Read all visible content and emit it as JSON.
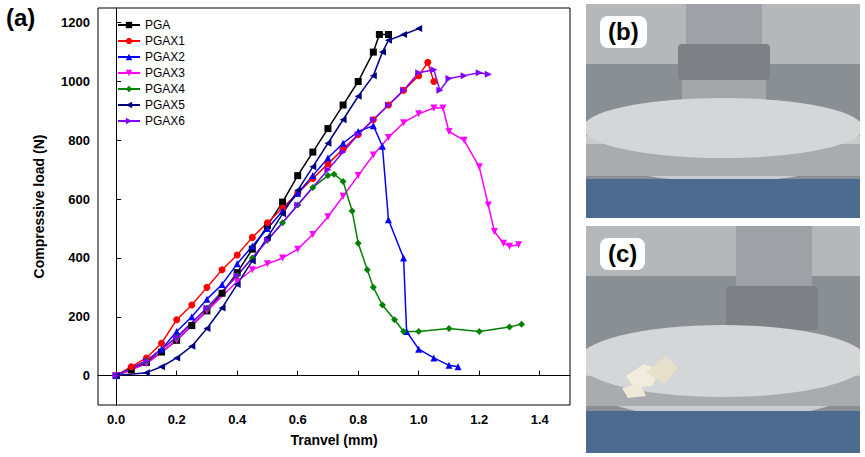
{
  "panel_labels": [
    "(a)",
    "(b)",
    "(c)"
  ],
  "chart_data": {
    "type": "line",
    "x_label": "Tranvel (mm)",
    "y_label": "Compressive load (N)",
    "xlim": [
      -0.06,
      1.5
    ],
    "xticks": [
      {
        "value": 0,
        "label": "0.0"
      },
      0.2,
      0.4,
      0.6,
      0.8,
      {
        "value": 1,
        "label": "1.0"
      },
      1.2,
      1.4
    ],
    "ylim": [
      -100,
      1250
    ],
    "yticks": [
      0,
      200,
      400,
      600,
      800,
      1000,
      1200
    ],
    "grid": false,
    "legend": "upper left",
    "series": [
      {
        "name": "PGA",
        "color": "#000000",
        "marker": "square",
        "line_style": "solid",
        "x": [
          0,
          0.05,
          0.1,
          0.15,
          0.2,
          0.25,
          0.3,
          0.35,
          0.4,
          0.45,
          0.5,
          0.55,
          0.6,
          0.65,
          0.7,
          0.75,
          0.8,
          0.85,
          0.87,
          0.9
        ],
        "values": [
          0,
          20,
          45,
          80,
          120,
          170,
          220,
          280,
          350,
          430,
          510,
          590,
          680,
          760,
          840,
          920,
          1000,
          1100,
          1160,
          1160
        ]
      },
      {
        "name": "PGAX1",
        "color": "#ff0000",
        "marker": "circle",
        "line_style": "solid",
        "x": [
          0,
          0.05,
          0.1,
          0.15,
          0.2,
          0.25,
          0.3,
          0.35,
          0.4,
          0.45,
          0.5,
          0.55,
          0.6,
          0.65,
          0.7,
          0.75,
          0.8,
          0.85,
          0.9,
          0.95,
          1.0,
          1.03,
          1.05
        ],
        "values": [
          0,
          30,
          60,
          110,
          190,
          240,
          300,
          360,
          410,
          470,
          520,
          570,
          620,
          670,
          720,
          770,
          820,
          870,
          920,
          970,
          1020,
          1065,
          1000
        ]
      },
      {
        "name": "PGAX2",
        "color": "#0000ff",
        "marker": "triangle",
        "line_style": "solid",
        "x": [
          0,
          0.1,
          0.15,
          0.2,
          0.25,
          0.3,
          0.35,
          0.4,
          0.45,
          0.5,
          0.55,
          0.6,
          0.65,
          0.7,
          0.75,
          0.8,
          0.85,
          0.88,
          0.9,
          0.95,
          0.96,
          1.0,
          1.05,
          1.1,
          1.13
        ],
        "values": [
          0,
          50,
          90,
          150,
          200,
          260,
          310,
          380,
          440,
          500,
          560,
          620,
          680,
          740,
          790,
          830,
          850,
          780,
          530,
          400,
          150,
          90,
          60,
          35,
          30
        ]
      },
      {
        "name": "PGAX3",
        "color": "#ff00ff",
        "marker": "triangle_down",
        "line_style": "solid",
        "x": [
          0,
          0.1,
          0.2,
          0.3,
          0.4,
          0.45,
          0.5,
          0.55,
          0.6,
          0.65,
          0.7,
          0.75,
          0.8,
          0.85,
          0.9,
          0.95,
          1.0,
          1.05,
          1.08,
          1.1,
          1.15,
          1.2,
          1.23,
          1.25,
          1.28,
          1.3,
          1.33
        ],
        "values": [
          0,
          40,
          120,
          220,
          320,
          360,
          380,
          400,
          430,
          480,
          540,
          610,
          680,
          750,
          810,
          860,
          890,
          910,
          910,
          830,
          800,
          710,
          580,
          490,
          450,
          440,
          445
        ]
      },
      {
        "name": "PGAX4",
        "color": "#008000",
        "marker": "diamond",
        "line_style": "solid",
        "x": [
          0,
          0.1,
          0.2,
          0.3,
          0.4,
          0.45,
          0.5,
          0.55,
          0.6,
          0.65,
          0.7,
          0.72,
          0.75,
          0.78,
          0.8,
          0.83,
          0.85,
          0.88,
          0.92,
          0.95,
          1.0,
          1.1,
          1.2,
          1.3,
          1.34
        ],
        "values": [
          0,
          50,
          130,
          230,
          340,
          400,
          460,
          520,
          580,
          640,
          680,
          685,
          660,
          560,
          450,
          360,
          300,
          240,
          190,
          150,
          150,
          160,
          150,
          165,
          175
        ]
      },
      {
        "name": "PGAX5",
        "color": "#000080",
        "marker": "triangle_left",
        "line_style": "solid",
        "x": [
          0,
          0.1,
          0.15,
          0.2,
          0.25,
          0.3,
          0.35,
          0.4,
          0.45,
          0.5,
          0.55,
          0.6,
          0.65,
          0.7,
          0.75,
          0.8,
          0.85,
          0.88,
          0.9,
          0.95,
          1.0
        ],
        "values": [
          0,
          10,
          30,
          60,
          100,
          160,
          230,
          310,
          390,
          470,
          550,
          630,
          710,
          790,
          870,
          950,
          1020,
          1100,
          1140,
          1160,
          1180
        ]
      },
      {
        "name": "PGAX6",
        "color": "#8000ff",
        "marker": "triangle_right",
        "line_style": "solid",
        "x": [
          0,
          0.1,
          0.2,
          0.3,
          0.4,
          0.5,
          0.6,
          0.7,
          0.75,
          0.8,
          0.85,
          0.9,
          0.95,
          1.0,
          1.05,
          1.07,
          1.1,
          1.15,
          1.2,
          1.23
        ],
        "values": [
          0,
          50,
          130,
          230,
          340,
          460,
          580,
          700,
          760,
          820,
          870,
          920,
          970,
          1030,
          1040,
          970,
          1010,
          1020,
          1030,
          1025
        ]
      }
    ]
  }
}
